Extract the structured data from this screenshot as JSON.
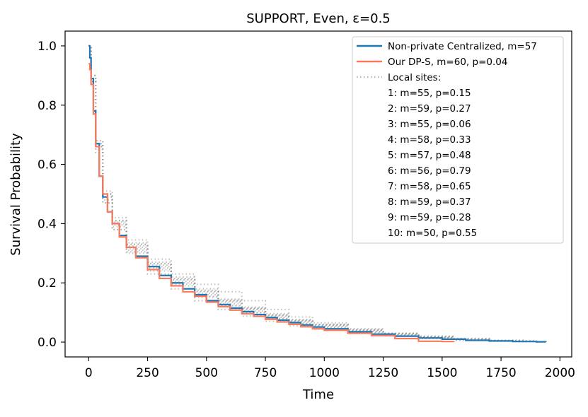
{
  "chart_data": {
    "type": "line",
    "title": "SUPPORT, Even, ε=0.5",
    "xlabel": "Time",
    "ylabel": "Survival Probability",
    "xlim": [
      -100,
      2050
    ],
    "ylim": [
      -0.05,
      1.05
    ],
    "xticks": [
      0,
      250,
      500,
      750,
      1000,
      1250,
      1500,
      1750,
      2000
    ],
    "xtick_labels": [
      "0",
      "250",
      "500",
      "750",
      "1000",
      "1250",
      "1500",
      "1750",
      "2000"
    ],
    "yticks": [
      0.0,
      0.2,
      0.4,
      0.6,
      0.8,
      1.0
    ],
    "ytick_labels": [
      "0.0",
      "0.2",
      "0.4",
      "0.6",
      "0.8",
      "1.0"
    ],
    "grid": false,
    "legend_position": "top-right",
    "colors": {
      "centralized": "#1f77b4",
      "dps": "#fa7a5b",
      "local": "#999999"
    },
    "series": [
      {
        "name": "Non-private Centralized, m=57",
        "style": "solid",
        "x": [
          0,
          5,
          10,
          20,
          30,
          45,
          60,
          80,
          100,
          130,
          160,
          200,
          250,
          300,
          350,
          400,
          450,
          500,
          550,
          600,
          650,
          700,
          750,
          800,
          850,
          900,
          950,
          1000,
          1100,
          1200,
          1300,
          1400,
          1500,
          1600,
          1700,
          1800,
          1900,
          1940
        ],
        "y": [
          1.0,
          0.96,
          0.89,
          0.78,
          0.67,
          0.56,
          0.49,
          0.44,
          0.4,
          0.36,
          0.32,
          0.29,
          0.255,
          0.225,
          0.2,
          0.18,
          0.16,
          0.14,
          0.127,
          0.115,
          0.103,
          0.093,
          0.083,
          0.074,
          0.066,
          0.058,
          0.051,
          0.045,
          0.035,
          0.027,
          0.02,
          0.014,
          0.01,
          0.006,
          0.004,
          0.002,
          0.001,
          0.0
        ]
      },
      {
        "name": "Our DP-S, m=60, p=0.04",
        "style": "solid",
        "x": [
          0,
          5,
          10,
          20,
          30,
          45,
          60,
          80,
          100,
          130,
          160,
          200,
          250,
          300,
          350,
          400,
          450,
          500,
          550,
          600,
          650,
          700,
          750,
          800,
          850,
          900,
          950,
          1000,
          1100,
          1200,
          1300,
          1400,
          1500,
          1550
        ],
        "y": [
          0.94,
          0.92,
          0.87,
          0.77,
          0.66,
          0.56,
          0.5,
          0.44,
          0.4,
          0.355,
          0.32,
          0.285,
          0.245,
          0.215,
          0.19,
          0.17,
          0.155,
          0.135,
          0.12,
          0.108,
          0.096,
          0.087,
          0.077,
          0.068,
          0.06,
          0.052,
          0.045,
          0.04,
          0.03,
          0.022,
          0.012,
          0.003,
          0.002,
          0.001
        ]
      }
    ],
    "local_sites_label": "Local sites:",
    "local_sites": [
      {
        "name": "1: m=55, p=0.15",
        "x": [
          0,
          10,
          30,
          60,
          100,
          160,
          250,
          350,
          450,
          550,
          650,
          750,
          850,
          950,
          1100,
          1250,
          1400,
          1550,
          1700,
          1850
        ],
        "y": [
          1.0,
          0.9,
          0.66,
          0.48,
          0.39,
          0.31,
          0.245,
          0.195,
          0.155,
          0.125,
          0.1,
          0.08,
          0.063,
          0.05,
          0.035,
          0.024,
          0.014,
          0.008,
          0.004,
          0.0
        ]
      },
      {
        "name": "2: m=59, p=0.27",
        "x": [
          0,
          10,
          30,
          60,
          100,
          160,
          250,
          350,
          450,
          550,
          650,
          750,
          850,
          950,
          1100,
          1250,
          1400,
          1550,
          1700,
          1800
        ],
        "y": [
          1.0,
          0.88,
          0.68,
          0.5,
          0.41,
          0.335,
          0.27,
          0.22,
          0.18,
          0.145,
          0.118,
          0.096,
          0.076,
          0.06,
          0.042,
          0.028,
          0.018,
          0.01,
          0.005,
          0.0
        ]
      },
      {
        "name": "3: m=55, p=0.06",
        "x": [
          0,
          10,
          30,
          60,
          100,
          160,
          250,
          350,
          450,
          550,
          650,
          750,
          850,
          950,
          1100,
          1250,
          1400,
          1550,
          1700
        ],
        "y": [
          1.0,
          0.89,
          0.65,
          0.47,
          0.38,
          0.3,
          0.23,
          0.18,
          0.14,
          0.11,
          0.088,
          0.07,
          0.055,
          0.044,
          0.031,
          0.021,
          0.012,
          0.006,
          0.0
        ]
      },
      {
        "name": "4: m=58, p=0.33",
        "x": [
          0,
          10,
          30,
          60,
          100,
          160,
          250,
          350,
          450,
          550,
          650,
          750,
          850,
          950,
          1100,
          1250,
          1400,
          1550,
          1700,
          1850
        ],
        "y": [
          1.0,
          0.9,
          0.67,
          0.5,
          0.41,
          0.33,
          0.265,
          0.215,
          0.175,
          0.142,
          0.115,
          0.092,
          0.073,
          0.058,
          0.041,
          0.029,
          0.019,
          0.011,
          0.005,
          0.0
        ]
      },
      {
        "name": "5: m=57, p=0.48",
        "x": [
          0,
          10,
          30,
          60,
          100,
          160,
          250,
          350,
          450,
          550,
          650,
          750,
          850,
          950,
          1100,
          1250,
          1400,
          1550,
          1700,
          1900
        ],
        "y": [
          1.0,
          0.88,
          0.66,
          0.49,
          0.4,
          0.32,
          0.255,
          0.205,
          0.165,
          0.135,
          0.11,
          0.088,
          0.07,
          0.056,
          0.039,
          0.027,
          0.017,
          0.01,
          0.005,
          0.0
        ]
      },
      {
        "name": "6: m=56, p=0.79",
        "x": [
          0,
          10,
          30,
          60,
          100,
          160,
          250,
          350,
          450,
          550,
          650,
          750,
          850,
          950,
          1100,
          1250,
          1400,
          1550,
          1700,
          1850
        ],
        "y": [
          1.0,
          0.9,
          0.68,
          0.51,
          0.42,
          0.345,
          0.28,
          0.23,
          0.195,
          0.17,
          0.14,
          0.11,
          0.085,
          0.065,
          0.045,
          0.03,
          0.02,
          0.012,
          0.006,
          0.0
        ]
      },
      {
        "name": "7: m=58, p=0.65",
        "x": [
          0,
          10,
          30,
          60,
          100,
          160,
          250,
          350,
          450,
          550,
          650,
          750,
          850,
          950,
          1100,
          1250,
          1400,
          1550,
          1700,
          1800
        ],
        "y": [
          1.0,
          0.89,
          0.67,
          0.5,
          0.405,
          0.325,
          0.26,
          0.21,
          0.17,
          0.138,
          0.112,
          0.09,
          0.072,
          0.057,
          0.04,
          0.028,
          0.018,
          0.01,
          0.005,
          0.0
        ]
      },
      {
        "name": "8: m=59, p=0.37",
        "x": [
          0,
          10,
          30,
          60,
          100,
          160,
          250,
          350,
          450,
          550,
          650,
          750,
          850,
          950,
          1100,
          1250,
          1400,
          1550,
          1700,
          1900
        ],
        "y": [
          1.0,
          0.88,
          0.66,
          0.49,
          0.395,
          0.315,
          0.25,
          0.2,
          0.16,
          0.13,
          0.105,
          0.084,
          0.067,
          0.053,
          0.037,
          0.026,
          0.016,
          0.009,
          0.004,
          0.0
        ]
      },
      {
        "name": "9: m=59, p=0.28",
        "x": [
          0,
          10,
          30,
          60,
          100,
          160,
          250,
          350,
          450,
          550,
          650,
          750,
          850,
          950,
          1100,
          1250,
          1400,
          1550,
          1700,
          1850
        ],
        "y": [
          1.0,
          0.9,
          0.67,
          0.5,
          0.41,
          0.33,
          0.265,
          0.212,
          0.172,
          0.14,
          0.114,
          0.092,
          0.074,
          0.059,
          0.042,
          0.029,
          0.019,
          0.011,
          0.005,
          0.0
        ]
      },
      {
        "name": "10: m=50, p=0.55",
        "x": [
          0,
          10,
          30,
          60,
          100,
          160,
          250,
          350,
          450,
          550,
          650,
          750,
          850,
          950,
          1100,
          1250,
          1400,
          1550,
          1700,
          1800
        ],
        "y": [
          1.0,
          0.87,
          0.64,
          0.47,
          0.38,
          0.305,
          0.24,
          0.19,
          0.152,
          0.122,
          0.098,
          0.078,
          0.062,
          0.049,
          0.034,
          0.023,
          0.014,
          0.008,
          0.003,
          0.0
        ]
      }
    ]
  }
}
